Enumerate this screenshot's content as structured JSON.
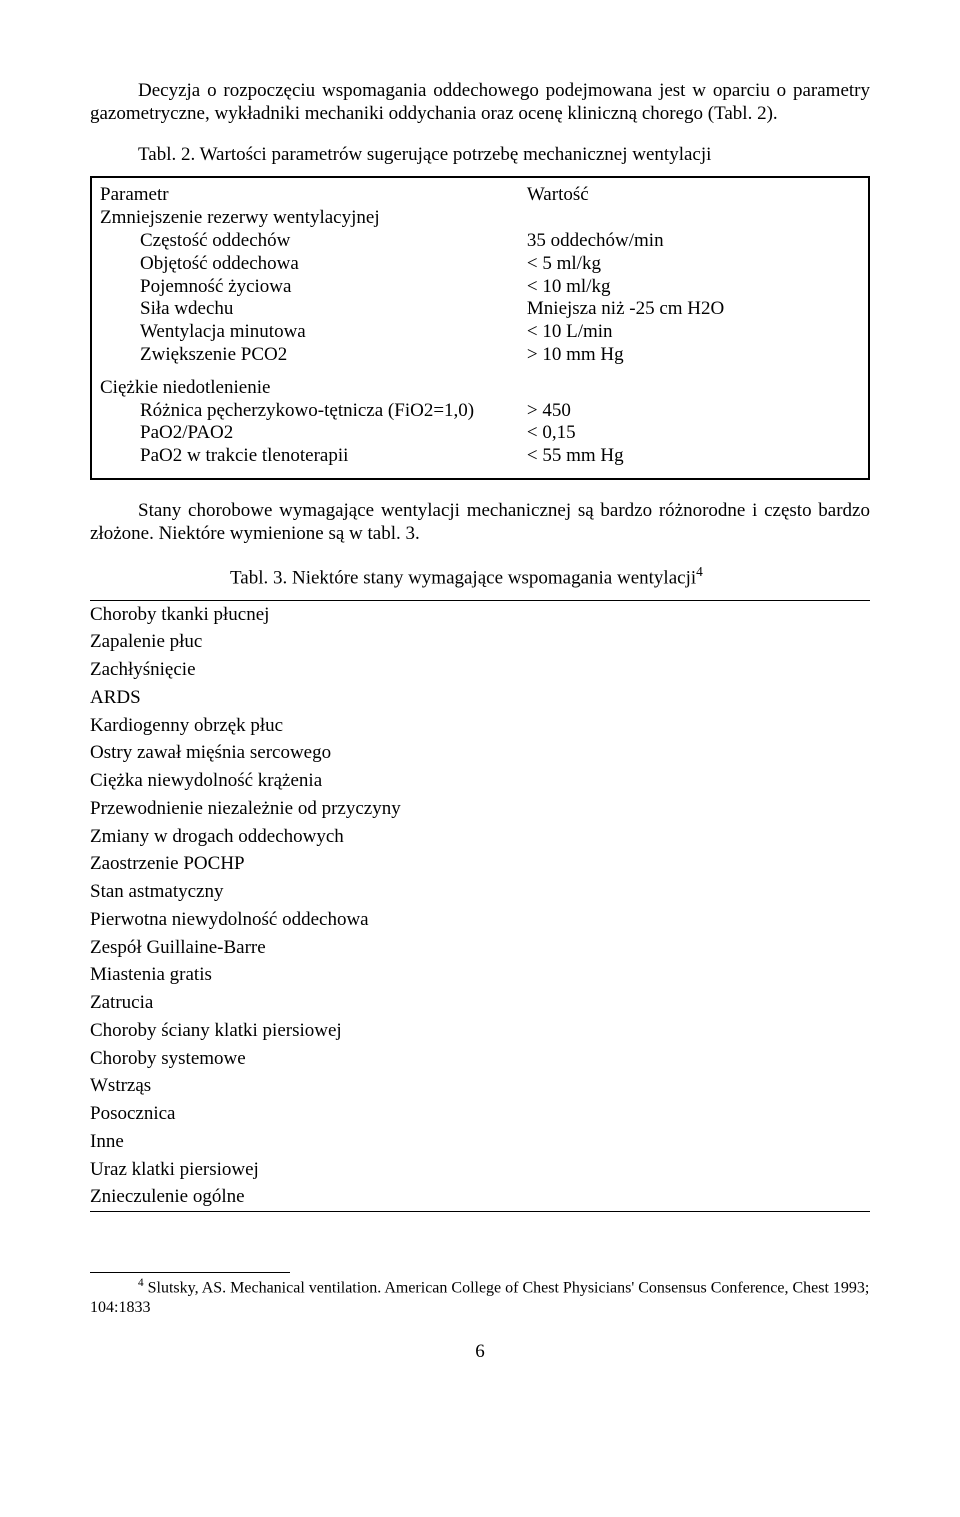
{
  "intro": "Decyzja o rozpoczęciu wspomagania oddechowego podejmowana jest w oparciu o parametry gazometryczne, wykładniki mechaniki oddychania oraz ocenę kliniczną chorego (Tabl. 2).",
  "table2": {
    "caption": "Tabl. 2. Wartości parametrów sugerujące potrzebę mechanicznej wentylacji",
    "headerLeft": "Parametr",
    "headerRight": "Wartość",
    "groupA": {
      "title": "Zmniejszenie rezerwy wentylacyjnej",
      "rows": [
        {
          "l": "Częstość oddechów",
          "r": "35 oddechów/min"
        },
        {
          "l": "Objętość oddechowa",
          "r": "< 5 ml/kg"
        },
        {
          "l": "Pojemność życiowa",
          "r": "< 10 ml/kg"
        },
        {
          "l": "Siła wdechu",
          "r": "Mniejsza niż -25 cm H2O"
        },
        {
          "l": "Wentylacja minutowa",
          "r": "< 10 L/min"
        },
        {
          "l": "Zwiększenie PCO2",
          "r": "> 10 mm Hg"
        }
      ]
    },
    "groupB": {
      "title": "Ciężkie niedotlenienie",
      "rows": [
        {
          "l": "Różnica pęcherzykowo-tętnicza (FiO2=1,0)",
          "r": "> 450"
        },
        {
          "l": "PaO2/PAO2",
          "r": "< 0,15"
        },
        {
          "l": "PaO2 w trakcie tlenoterapii",
          "r": "< 55 mm Hg"
        }
      ]
    }
  },
  "mid": "Stany chorobowe wymagające wentylacji mechanicznej są bardzo różnorodne i często bardzo złożone. Niektóre wymienione są w tabl. 3.",
  "table3": {
    "caption_prefix": "Tabl. 3. Niektóre stany wymagające wspomagania wentylacji",
    "caption_sup": "4",
    "items": [
      {
        "lvl": 0,
        "t": "Choroby tkanki płucnej"
      },
      {
        "lvl": 1,
        "t": "Zapalenie płuc"
      },
      {
        "lvl": 1,
        "t": "Zachłyśnięcie"
      },
      {
        "lvl": 1,
        "t": "ARDS"
      },
      {
        "lvl": 0,
        "t": "Kardiogenny obrzęk płuc"
      },
      {
        "lvl": 1,
        "t": "Ostry zawał mięśnia sercowego"
      },
      {
        "lvl": 1,
        "t": "Ciężka niewydolność krążenia"
      },
      {
        "lvl": 1,
        "t": "Przewodnienie niezależnie od przyczyny"
      },
      {
        "lvl": 0,
        "t": "Zmiany w drogach oddechowych"
      },
      {
        "lvl": 1,
        "t": "Zaostrzenie POCHP"
      },
      {
        "lvl": 1,
        "t": "Stan astmatyczny"
      },
      {
        "lvl": 0,
        "t": "Pierwotna niewydolność oddechowa"
      },
      {
        "lvl": 1,
        "t": "Zespół Guillaine-Barre"
      },
      {
        "lvl": 1,
        "t": "Miastenia gratis"
      },
      {
        "lvl": 1,
        "t": "Zatrucia"
      },
      {
        "lvl": 1,
        "t": "Choroby ściany klatki piersiowej"
      },
      {
        "lvl": 0,
        "t": "Choroby systemowe"
      },
      {
        "lvl": 1,
        "t": "Wstrząs"
      },
      {
        "lvl": 1,
        "t": "Posocznica"
      },
      {
        "lvl": 0,
        "t": "Inne"
      },
      {
        "lvl": 1,
        "t": "Uraz klatki piersiowej"
      },
      {
        "lvl": 1,
        "t": "Znieczulenie ogólne"
      }
    ]
  },
  "footnote": {
    "num": "4",
    "text": " Slutsky, AS. Mechanical ventilation. American College of Chest Physicians' Consensus Conference, Chest 1993; 104:1833"
  },
  "pagenum": "6"
}
